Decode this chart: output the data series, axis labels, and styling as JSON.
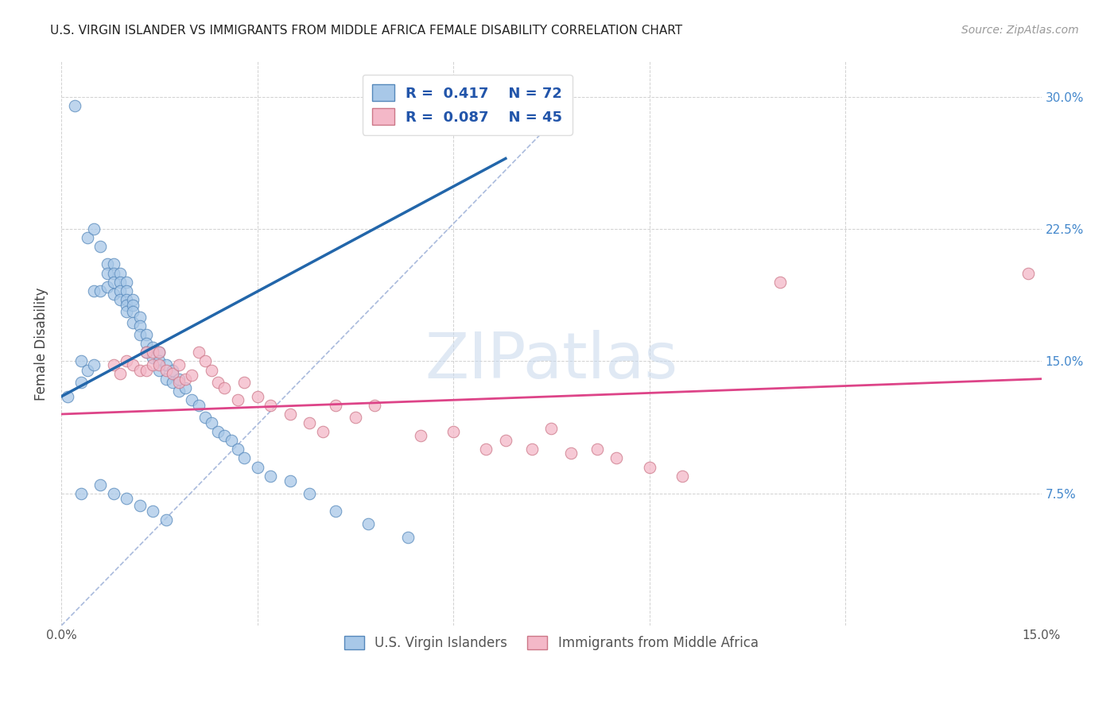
{
  "title": "U.S. VIRGIN ISLANDER VS IMMIGRANTS FROM MIDDLE AFRICA FEMALE DISABILITY CORRELATION CHART",
  "source": "Source: ZipAtlas.com",
  "ylabel": "Female Disability",
  "xlim": [
    0.0,
    0.15
  ],
  "ylim": [
    0.0,
    0.32
  ],
  "legend_r1": "R =  0.417",
  "legend_n1": "N = 72",
  "legend_r2": "R =  0.087",
  "legend_n2": "N = 45",
  "color_blue_fill": "#a8c8e8",
  "color_blue_edge": "#5588bb",
  "color_pink_fill": "#f4b8c8",
  "color_pink_edge": "#cc7788",
  "color_blue_line": "#2266aa",
  "color_pink_line": "#dd4488",
  "color_diag": "#aabbcc",
  "blue_scatter_x": [
    0.001,
    0.002,
    0.003,
    0.003,
    0.004,
    0.004,
    0.005,
    0.005,
    0.005,
    0.006,
    0.006,
    0.007,
    0.007,
    0.007,
    0.008,
    0.008,
    0.008,
    0.008,
    0.009,
    0.009,
    0.009,
    0.009,
    0.01,
    0.01,
    0.01,
    0.01,
    0.01,
    0.011,
    0.011,
    0.011,
    0.011,
    0.012,
    0.012,
    0.012,
    0.013,
    0.013,
    0.013,
    0.014,
    0.014,
    0.015,
    0.015,
    0.015,
    0.016,
    0.016,
    0.017,
    0.017,
    0.018,
    0.018,
    0.019,
    0.02,
    0.021,
    0.022,
    0.023,
    0.024,
    0.025,
    0.026,
    0.027,
    0.028,
    0.03,
    0.032,
    0.035,
    0.038,
    0.042,
    0.047,
    0.053,
    0.003,
    0.006,
    0.008,
    0.01,
    0.012,
    0.014,
    0.016
  ],
  "blue_scatter_y": [
    0.13,
    0.295,
    0.15,
    0.138,
    0.22,
    0.145,
    0.225,
    0.19,
    0.148,
    0.215,
    0.19,
    0.205,
    0.2,
    0.192,
    0.205,
    0.2,
    0.195,
    0.188,
    0.2,
    0.195,
    0.19,
    0.185,
    0.195,
    0.19,
    0.185,
    0.182,
    0.178,
    0.185,
    0.182,
    0.178,
    0.172,
    0.175,
    0.17,
    0.165,
    0.165,
    0.16,
    0.155,
    0.158,
    0.152,
    0.155,
    0.15,
    0.145,
    0.148,
    0.14,
    0.145,
    0.138,
    0.14,
    0.133,
    0.135,
    0.128,
    0.125,
    0.118,
    0.115,
    0.11,
    0.108,
    0.105,
    0.1,
    0.095,
    0.09,
    0.085,
    0.082,
    0.075,
    0.065,
    0.058,
    0.05,
    0.075,
    0.08,
    0.075,
    0.072,
    0.068,
    0.065,
    0.06
  ],
  "pink_scatter_x": [
    0.008,
    0.009,
    0.01,
    0.011,
    0.012,
    0.013,
    0.013,
    0.014,
    0.014,
    0.015,
    0.015,
    0.016,
    0.017,
    0.018,
    0.018,
    0.019,
    0.02,
    0.021,
    0.022,
    0.023,
    0.024,
    0.025,
    0.027,
    0.028,
    0.03,
    0.032,
    0.035,
    0.038,
    0.04,
    0.042,
    0.045,
    0.048,
    0.055,
    0.06,
    0.065,
    0.068,
    0.072,
    0.075,
    0.078,
    0.082,
    0.085,
    0.09,
    0.095,
    0.11,
    0.148
  ],
  "pink_scatter_y": [
    0.148,
    0.143,
    0.15,
    0.148,
    0.145,
    0.155,
    0.145,
    0.155,
    0.148,
    0.155,
    0.148,
    0.145,
    0.143,
    0.148,
    0.138,
    0.14,
    0.142,
    0.155,
    0.15,
    0.145,
    0.138,
    0.135,
    0.128,
    0.138,
    0.13,
    0.125,
    0.12,
    0.115,
    0.11,
    0.125,
    0.118,
    0.125,
    0.108,
    0.11,
    0.1,
    0.105,
    0.1,
    0.112,
    0.098,
    0.1,
    0.095,
    0.09,
    0.085,
    0.195,
    0.2
  ],
  "blue_line_x": [
    0.0,
    0.068
  ],
  "blue_line_y": [
    0.13,
    0.265
  ],
  "pink_line_x": [
    0.0,
    0.15
  ],
  "pink_line_y": [
    0.12,
    0.14
  ],
  "diag_line_x": [
    0.0,
    0.075
  ],
  "diag_line_y": [
    0.0,
    0.285
  ]
}
